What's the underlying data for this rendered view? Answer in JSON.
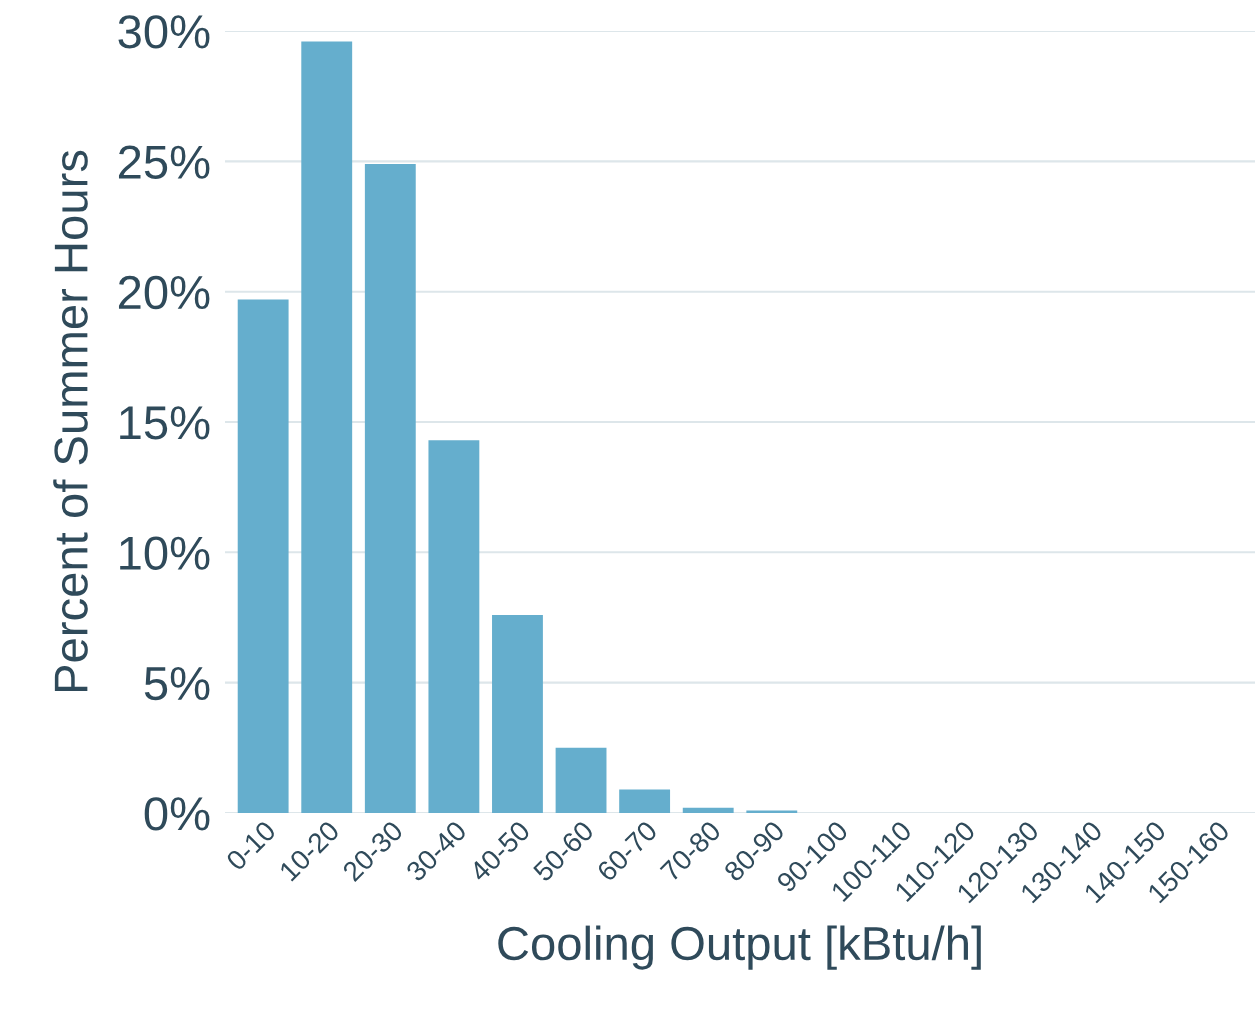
{
  "chart_data": {
    "type": "bar",
    "xlabel": "Cooling Output [kBtu/h]",
    "ylabel": "Percent of Summer Hours",
    "categories": [
      "0-10",
      "10-20",
      "20-30",
      "30-40",
      "40-50",
      "50-60",
      "60-70",
      "70-80",
      "80-90",
      "90-100",
      "100-110",
      "110-120",
      "120-130",
      "130-140",
      "140-150",
      "150-160"
    ],
    "values": [
      19.7,
      29.6,
      24.9,
      14.3,
      7.6,
      2.5,
      0.9,
      0.2,
      0.1,
      0,
      0,
      0,
      0,
      0,
      0,
      0
    ],
    "color": "#65aecd",
    "ylim": [
      0,
      30
    ],
    "yticks": [
      {
        "value": 0,
        "label": "0%"
      },
      {
        "value": 5,
        "label": "5%"
      },
      {
        "value": 10,
        "label": "10%"
      },
      {
        "value": 15,
        "label": "15%"
      },
      {
        "value": 20,
        "label": "20%"
      },
      {
        "value": 25,
        "label": "25%"
      },
      {
        "value": 30,
        "label": "30%"
      }
    ],
    "grid": "y"
  }
}
